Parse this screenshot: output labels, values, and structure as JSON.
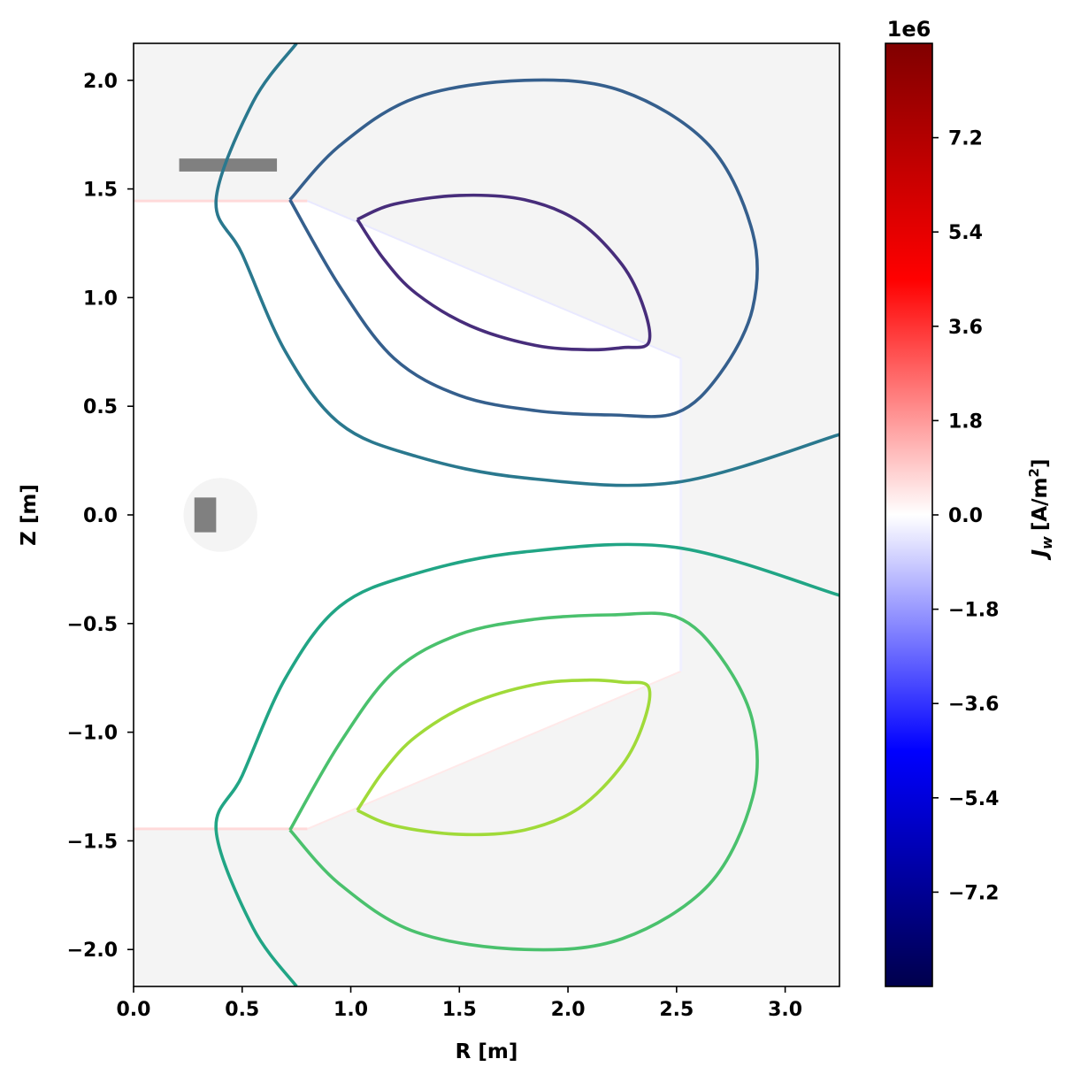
{
  "chart_data": {
    "type": "contour",
    "xlabel": "R [m]",
    "ylabel": "Z [m]",
    "xlim": [
      0.0,
      3.25
    ],
    "ylim": [
      -2.17,
      2.17
    ],
    "xticks": [
      "0.0",
      "0.5",
      "1.0",
      "1.5",
      "2.0",
      "2.5",
      "3.0"
    ],
    "xtick_values": [
      0.0,
      0.5,
      1.0,
      1.5,
      2.0,
      2.5,
      3.0
    ],
    "yticks": [
      "2.0",
      "1.5",
      "1.0",
      "0.5",
      "0.0",
      "−0.5",
      "−1.0",
      "−1.5",
      "−2.0"
    ],
    "ytick_values": [
      2.0,
      1.5,
      1.0,
      0.5,
      0.0,
      -0.5,
      -1.0,
      -1.5,
      -2.0
    ],
    "colorbar": {
      "label_base": "J",
      "label_sub": "w",
      "label_unit": "[A/m",
      "label_exp": "2",
      "label_close": "]",
      "multiplier": "1e6",
      "range": [
        -9.0,
        9.0
      ],
      "ticks": [
        "7.2",
        "5.4",
        "3.6",
        "1.8",
        "0.0",
        "−1.8",
        "−3.6",
        "−5.4",
        "−7.2"
      ],
      "tick_values": [
        7.2,
        5.4,
        3.6,
        1.8,
        0.0,
        -1.8,
        -3.6,
        -5.4,
        -7.2
      ],
      "colormap": "seismic",
      "colors": [
        "#00004c",
        "#0000ff",
        "#ffffff",
        "#ff0000",
        "#800000"
      ]
    },
    "background_color": "#f4f4f4",
    "plasma_region_color": "#ffffff",
    "coil_color": "#808080",
    "series": [
      {
        "color": "#2a788e",
        "points": [
          [
            0.75,
            2.17
          ],
          [
            0.55,
            1.9
          ],
          [
            0.38,
            1.45
          ],
          [
            0.5,
            1.2
          ],
          [
            0.7,
            0.75
          ],
          [
            0.95,
            0.42
          ],
          [
            1.3,
            0.27
          ],
          [
            1.8,
            0.17
          ],
          [
            2.5,
            0.15
          ],
          [
            3.25,
            0.37
          ]
        ]
      },
      {
        "color": "#355f8d",
        "points": [
          [
            0.72,
            1.45
          ],
          [
            0.95,
            1.7
          ],
          [
            1.3,
            1.92
          ],
          [
            1.8,
            2.0
          ],
          [
            2.25,
            1.95
          ],
          [
            2.65,
            1.7
          ],
          [
            2.85,
            1.3
          ],
          [
            2.85,
            0.95
          ],
          [
            2.7,
            0.65
          ],
          [
            2.5,
            0.47
          ],
          [
            2.2,
            0.46
          ],
          [
            1.85,
            0.48
          ],
          [
            1.5,
            0.55
          ],
          [
            1.2,
            0.72
          ],
          [
            0.95,
            1.05
          ],
          [
            0.72,
            1.45
          ]
        ]
      },
      {
        "color": "#472d7b",
        "points": [
          [
            1.03,
            1.36
          ],
          [
            1.2,
            1.43
          ],
          [
            1.5,
            1.47
          ],
          [
            1.8,
            1.45
          ],
          [
            2.05,
            1.35
          ],
          [
            2.25,
            1.15
          ],
          [
            2.35,
            0.95
          ],
          [
            2.37,
            0.79
          ],
          [
            2.25,
            0.77
          ],
          [
            2.1,
            0.76
          ],
          [
            1.85,
            0.78
          ],
          [
            1.55,
            0.87
          ],
          [
            1.3,
            1.02
          ],
          [
            1.15,
            1.18
          ],
          [
            1.03,
            1.36
          ]
        ]
      },
      {
        "color": "#21a585",
        "points": [
          [
            0.75,
            -2.17
          ],
          [
            0.55,
            -1.9
          ],
          [
            0.38,
            -1.45
          ],
          [
            0.5,
            -1.2
          ],
          [
            0.7,
            -0.75
          ],
          [
            0.95,
            -0.42
          ],
          [
            1.3,
            -0.27
          ],
          [
            1.8,
            -0.17
          ],
          [
            2.5,
            -0.15
          ],
          [
            3.25,
            -0.37
          ]
        ]
      },
      {
        "color": "#4ac16d",
        "points": [
          [
            0.72,
            -1.45
          ],
          [
            0.95,
            -1.7
          ],
          [
            1.3,
            -1.92
          ],
          [
            1.8,
            -2.0
          ],
          [
            2.25,
            -1.95
          ],
          [
            2.65,
            -1.7
          ],
          [
            2.85,
            -1.3
          ],
          [
            2.85,
            -0.95
          ],
          [
            2.7,
            -0.65
          ],
          [
            2.5,
            -0.47
          ],
          [
            2.2,
            -0.46
          ],
          [
            1.85,
            -0.48
          ],
          [
            1.5,
            -0.55
          ],
          [
            1.2,
            -0.72
          ],
          [
            0.95,
            -1.05
          ],
          [
            0.72,
            -1.45
          ]
        ]
      },
      {
        "color": "#a0da39",
        "points": [
          [
            1.03,
            -1.36
          ],
          [
            1.2,
            -1.43
          ],
          [
            1.5,
            -1.47
          ],
          [
            1.8,
            -1.45
          ],
          [
            2.05,
            -1.35
          ],
          [
            2.25,
            -1.15
          ],
          [
            2.35,
            -0.95
          ],
          [
            2.37,
            -0.79
          ],
          [
            2.25,
            -0.77
          ],
          [
            2.1,
            -0.76
          ],
          [
            1.85,
            -0.78
          ],
          [
            1.55,
            -0.87
          ],
          [
            1.3,
            -1.02
          ],
          [
            1.15,
            -1.18
          ],
          [
            1.03,
            -1.36
          ]
        ]
      }
    ],
    "coils": [
      {
        "r_min": 0.21,
        "r_max": 0.66,
        "z_min": 1.58,
        "z_max": 1.64
      },
      {
        "r_min": 0.28,
        "r_max": 0.38,
        "z_min": -0.08,
        "z_max": 0.08
      }
    ],
    "circle": {
      "r": 0.4,
      "z": 0.0,
      "radius": 0.17
    }
  }
}
